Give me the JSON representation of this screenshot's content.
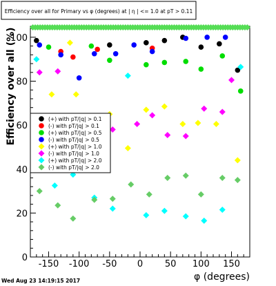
{
  "chart_data": {
    "type": "scatter",
    "title": "Efficiency over all for Primary vs φ (degrees) at | η | <= 1.0 at pT > 0.11",
    "xlabel": "φ (degrees)",
    "ylabel": "Efficiency over all (%)",
    "xlim": [
      -180,
      180
    ],
    "ylim": [
      0,
      105
    ],
    "xticks": [
      -150,
      -100,
      -50,
      0,
      50,
      100,
      150
    ],
    "yticks": [
      0,
      20,
      40,
      60,
      80,
      100
    ],
    "grid": false,
    "legend_position": "left-middle",
    "timestamp": "Wed Aug 23 14:19:15 2017",
    "series": [
      {
        "name": "(+) with pT/|q| > 0.1",
        "color": "#000000",
        "x": [
          -170,
          -50,
          10,
          40,
          70,
          100,
          130,
          160
        ],
        "y": [
          98.5,
          96.5,
          97.5,
          98.5,
          100,
          95.5,
          97,
          85
        ]
      },
      {
        "name": "(-) with pT/|q| > 0.1",
        "color": "#ff0000",
        "x": [
          -130,
          -110,
          -70,
          20
        ],
        "y": [
          93.5,
          91,
          94.5,
          95
        ]
      },
      {
        "name": "(+) with pT/|q| > 0.5",
        "color": "#00dd00",
        "x": [
          -150,
          -80,
          -50,
          10,
          40,
          75,
          100,
          135,
          165
        ],
        "y": [
          95.5,
          96,
          89.5,
          87.5,
          88.5,
          89,
          85.5,
          91.5,
          75.5
        ]
      },
      {
        "name": "(-) with pT/|q| > 0.5",
        "color": "#0000ff",
        "x": [
          -165,
          -130,
          -100,
          -75,
          -40,
          -10,
          20,
          75,
          110,
          140
        ],
        "y": [
          96.5,
          92,
          81.5,
          92.5,
          92.5,
          96.5,
          93.5,
          99.5,
          100,
          100
        ]
      },
      {
        "name": "(+) with pT/|q| > 1.0",
        "color": "#ffff00",
        "x": [
          -175,
          -145,
          -115,
          -105,
          -75,
          -50,
          -20,
          10,
          40,
          70,
          95,
          125,
          160
        ],
        "y": [
          62,
          74,
          97.5,
          74,
          64,
          65,
          49.5,
          67,
          68.5,
          60.5,
          61,
          60.5,
          44
        ]
      },
      {
        "name": "(-) with pT/|q| > 1.0",
        "color": "#ff00ff",
        "x": [
          -165,
          -135,
          -115,
          -80,
          -45,
          -5,
          20,
          45,
          75,
          105,
          135,
          150
        ],
        "y": [
          84,
          84.5,
          57.5,
          57,
          58,
          60.5,
          64.5,
          55.5,
          55,
          67.5,
          66,
          80.5
        ]
      },
      {
        "name": "(+) with pT/|q| > 2.0",
        "color": "#00ffff",
        "x": [
          -170,
          -140,
          -110,
          -75,
          -45,
          -20,
          10,
          40,
          75,
          105,
          135,
          165
        ],
        "y": [
          90,
          32.5,
          37.5,
          27,
          22,
          82.5,
          19,
          21,
          18.5,
          16.5,
          21.5,
          86.5
        ]
      },
      {
        "name": "(-) with pT/|q| > 2.0",
        "color": "#66cc66",
        "x": [
          -165,
          -135,
          -110,
          -75,
          -45,
          -15,
          15,
          45,
          75,
          100,
          135,
          160
        ],
        "y": [
          30,
          23.5,
          17.5,
          26,
          26.5,
          33,
          28.5,
          36,
          37,
          28.5,
          36,
          35
        ]
      },
      {
        "name": "",
        "color": "#55dd55",
        "x": [
          -176,
          -172,
          -168,
          -164,
          -160,
          -156,
          -152,
          -148,
          -144,
          -140,
          -136,
          -132,
          -128,
          -124,
          -120,
          -116,
          -112,
          -108,
          -104,
          -100,
          -96,
          -92,
          -88,
          -84,
          -80,
          -76,
          -72,
          -68,
          -64,
          -60,
          -56,
          -52,
          -48,
          -44,
          -40,
          -36,
          -32,
          -28,
          -24,
          -20,
          -16,
          -12,
          -8,
          -4,
          0,
          4,
          8,
          12,
          16,
          20,
          24,
          28,
          32,
          36,
          40,
          44,
          48,
          52,
          56,
          60,
          64,
          68,
          72,
          76,
          80,
          84,
          88,
          92,
          96,
          100,
          104,
          108,
          112,
          116,
          120,
          124,
          128,
          132,
          136,
          140,
          144,
          148,
          152,
          156,
          160,
          164,
          168,
          172,
          176
        ],
        "y": [
          104.5,
          104.5,
          104.5,
          104.5,
          104.5,
          104.5,
          104.5,
          104.5,
          104.5,
          104.5,
          104.5,
          104.5,
          104.5,
          104.5,
          104.5,
          104.5,
          104.5,
          104.5,
          104.5,
          104.5,
          104.5,
          104.5,
          104.5,
          104.5,
          104.5,
          104.5,
          104.5,
          104.5,
          104.5,
          104.5,
          104.5,
          104.5,
          104.5,
          104.5,
          104.5,
          104.5,
          104.5,
          104.5,
          104.5,
          104.5,
          104.5,
          104.5,
          104.5,
          104.5,
          104.5,
          104.5,
          104.5,
          104.5,
          104.5,
          104.5,
          104.5,
          104.5,
          104.5,
          104.5,
          104.5,
          104.5,
          104.5,
          104.5,
          104.5,
          104.5,
          104.5,
          104.5,
          104.5,
          104.5,
          104.5,
          104.5,
          104.5,
          104.5,
          104.5,
          104.5,
          104.5,
          104.5,
          104.5,
          104.5,
          104.5,
          104.5,
          104.5,
          104.5,
          104.5,
          104.5,
          104.5,
          104.5,
          104.5,
          104.5,
          104.5,
          104.5,
          104.5,
          104.5,
          104.5
        ]
      }
    ]
  }
}
